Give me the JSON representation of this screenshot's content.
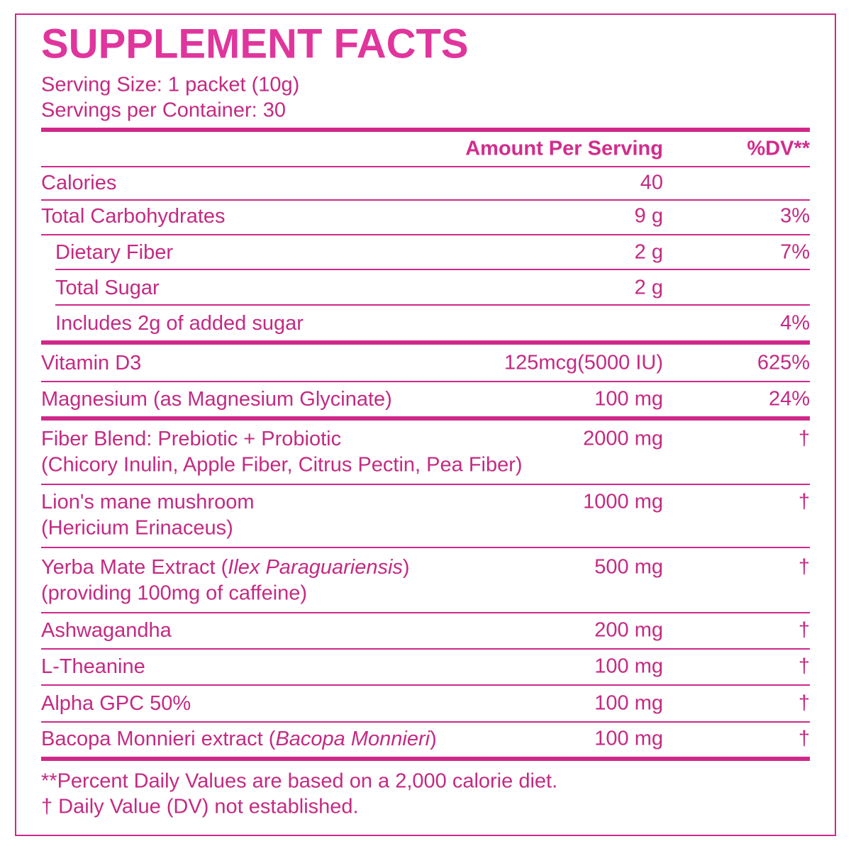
{
  "title": "SUPPLEMENT FACTS",
  "serving_size": "Serving Size: 1 packet (10g)",
  "servings_per_container": "Servings per Container: 30",
  "header": {
    "amount": "Amount Per Serving",
    "dv": "%DV**"
  },
  "rows": [
    {
      "name": "Calories",
      "amount": "40"
    },
    {
      "name": "Total Carbohydrates",
      "amount": "9 g",
      "dv": "3%"
    },
    {
      "name": "Dietary Fiber",
      "amount": "2 g",
      "dv": "7%"
    },
    {
      "name": "Total Sugar",
      "amount": "2 g"
    },
    {
      "name": "Includes 2g of added sugar",
      "dv": "4%"
    },
    {
      "name": "Vitamin D3",
      "amount": "125mcg(5000 IU)",
      "dv": "625%"
    },
    {
      "name": "Magnesium (as Magnesium Glycinate)",
      "amount": "100 mg",
      "dv": "24%"
    },
    {
      "name": "Fiber Blend: Prebiotic + Probiotic",
      "sub": "(Chicory Inulin, Apple Fiber, Citrus Pectin, Pea Fiber)",
      "amount": "2000 mg",
      "dv": "†"
    },
    {
      "name": "Lion's mane mushroom",
      "sub": "(Hericium Erinaceus)",
      "amount": "1000 mg",
      "dv": "†"
    },
    {
      "name": "Yerba Mate Extract (",
      "name_italic": "Ilex Paraguariensis",
      "name_after": ")",
      "sub": "(providing 100mg of caffeine)",
      "amount": "500 mg",
      "dv": "†"
    },
    {
      "name": "Ashwagandha",
      "amount": "200 mg",
      "dv": "†"
    },
    {
      "name": "L-Theanine",
      "amount": "100 mg",
      "dv": "†"
    },
    {
      "name": "Alpha GPC 50%",
      "amount": "100 mg",
      "dv": "†"
    },
    {
      "name": "Bacopa Monnieri extract (",
      "name_italic": "Bacopa Monnieri",
      "name_after": ")",
      "amount": "100 mg",
      "dv": "†"
    }
  ],
  "footnotes": [
    "**Percent Daily Values are based on a 2,000 calorie diet.",
    "† Daily Value (DV) not established."
  ]
}
